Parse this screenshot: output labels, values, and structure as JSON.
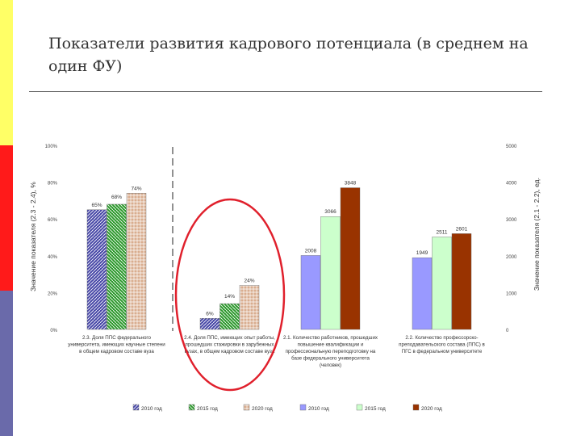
{
  "slide": {
    "title": "Показатели развития кадрового потенциала (в среднем на один ФУ)",
    "side_colors": [
      "#ffff66",
      "#ff1a1a",
      "#6a6aaa"
    ]
  },
  "chart_data": {
    "type": "bar",
    "left_axis": {
      "ylabel": "Значение показателя (2.3 - 2.4), %",
      "ticks": [
        "0%",
        "20%",
        "40%",
        "60%",
        "80%",
        "100%"
      ],
      "ylim": [
        0,
        100
      ]
    },
    "right_axis": {
      "ylabel": "Значение показателя (2.1 - 2.2), ед.",
      "ticks": [
        "0",
        "1000",
        "2000",
        "3000",
        "4000",
        "5000"
      ],
      "ylim": [
        0,
        5000
      ]
    },
    "groups": [
      {
        "axis": "left",
        "category": "2.3. Доля ППС федерального университета, имеющих научные степени, в общем кадровом составе вуза",
        "category_lines": [
          "2.3. Доля ППС федерального",
          "университета, имеющих научные степени",
          "в общем кадровом составе вуза"
        ],
        "values": [
          65,
          68,
          74
        ],
        "labels": [
          "65%",
          "68%",
          "74%"
        ]
      },
      {
        "axis": "left",
        "category": "2.4. Доля ППС, имеющих опыт работы, прошедших стажировки в зарубежных вузах, в общем кадровом составе вуза",
        "category_lines": [
          "2.4. Доля ППС, имеющих опыт работы,",
          "прошедших стажировки в зарубежных",
          "вузах, в общем кадровом составе вуза"
        ],
        "values": [
          6,
          14,
          24
        ],
        "labels": [
          "6%",
          "14%",
          "24%"
        ]
      },
      {
        "axis": "right",
        "category": "2.1. Количество работников, прошедших повышение квалификации и профессиональную переподготовку на базе федерального университета (человек)",
        "category_lines": [
          "2.1. Количество работников, прошедших",
          "повышение квалификации и",
          "профессиональную переподготовку на",
          "базе федерального университета",
          "(человек)"
        ],
        "values": [
          2008,
          3066,
          3848
        ],
        "labels": [
          "2008",
          "3066",
          "3848"
        ]
      },
      {
        "axis": "right",
        "category": "2.2. Количество профессорско-преподавательского состава (ППС) в федеральном университете",
        "category_lines": [
          "2.2. Количество профессорско-",
          "преподавательского состава (ППС) в",
          "ПГС в федеральном университете"
        ],
        "values": [
          1949,
          2511,
          2601
        ],
        "labels": [
          "1949",
          "2511",
          "2601"
        ]
      }
    ],
    "legend": {
      "placement": "bottom",
      "entries": [
        "2010 год",
        "2015 год",
        "2020 год",
        "2010 год",
        "2015 год",
        "2020 год"
      ]
    },
    "colors": {
      "pct_2010": "#4a4aa8",
      "pct_2015": "#2f9a2f",
      "pct_2020": "#c89a7a",
      "cnt_2010": "#9999ff",
      "cnt_2015": "#ccffcc",
      "cnt_2020": "#993300",
      "highlight": "#e0202c"
    },
    "grid": false
  }
}
